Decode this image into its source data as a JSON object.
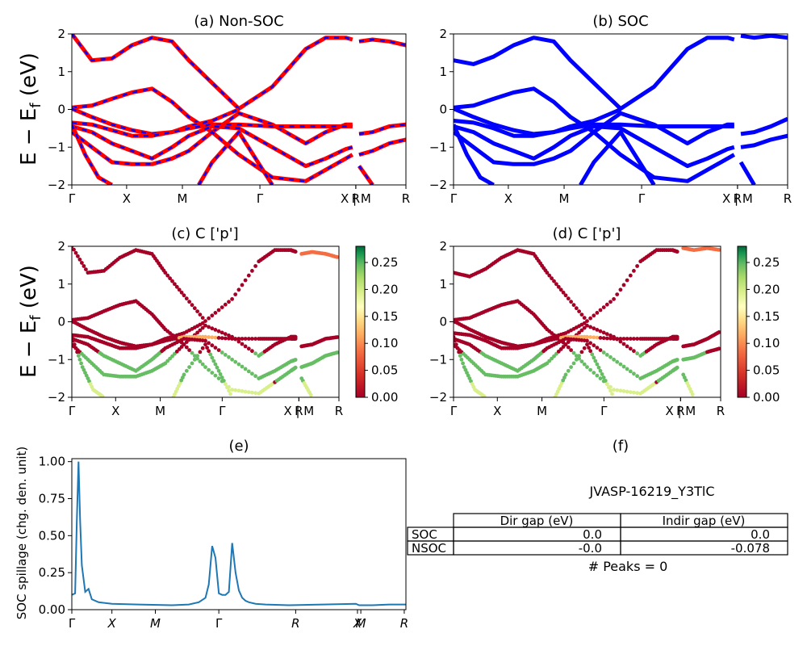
{
  "figure": {
    "ylabel_band": "E − E_f (eV)",
    "kpath_labels": [
      "Γ",
      "X",
      "M",
      "Γ",
      "R",
      "X | M",
      "R"
    ]
  },
  "chart_data": [
    {
      "type": "line",
      "panel": "a",
      "title": "(a) Non-SOC",
      "xlabel": "",
      "ylabel": "E − E_f (eV)",
      "ylim": [
        -2,
        2
      ],
      "yticks": [
        -2,
        -1,
        0,
        1,
        2
      ],
      "xticks": [
        "Γ",
        "X",
        "M",
        "Γ",
        "R",
        "X | M",
        "R"
      ],
      "colors": {
        "bands": "#ff0000",
        "dash": "#0000ff"
      },
      "note_x": "k-path position fraction 0..1",
      "series": [
        {
          "x": [
            0,
            0.06,
            0.12,
            0.18,
            0.24,
            0.3,
            0.35,
            0.42,
            0.5,
            0.6,
            0.7,
            0.76,
            0.82,
            0.84
          ],
          "y": [
            2,
            1.3,
            1.35,
            1.7,
            1.9,
            1.8,
            1.3,
            0.7,
            0.02,
            0.6,
            1.6,
            1.9,
            1.9,
            1.85
          ]
        },
        {
          "x": [
            0,
            0.06,
            0.12,
            0.18,
            0.24,
            0.3,
            0.35,
            0.42,
            0.5,
            0.6,
            0.7,
            0.76,
            0.82,
            0.84
          ],
          "y": [
            0.05,
            0.1,
            0.28,
            0.45,
            0.55,
            0.2,
            -0.2,
            -0.6,
            -0.1,
            -0.4,
            -0.9,
            -0.6,
            -0.4,
            -0.4
          ]
        },
        {
          "x": [
            0,
            0.06,
            0.12,
            0.18,
            0.24,
            0.3,
            0.35,
            0.42,
            0.5
          ],
          "y": [
            0.02,
            -0.2,
            -0.4,
            -0.55,
            -0.65,
            -0.6,
            -0.45,
            -0.3,
            0.0
          ]
        },
        {
          "x": [
            0,
            0.06,
            0.12,
            0.18,
            0.24,
            0.3,
            0.35,
            0.42,
            0.5,
            0.6,
            0.7,
            0.76,
            0.82,
            0.84
          ],
          "y": [
            -0.35,
            -0.4,
            -0.55,
            -0.7,
            -0.7,
            -0.6,
            -0.5,
            -0.4,
            -0.4,
            -0.45,
            -0.45,
            -0.45,
            -0.45,
            -0.45
          ]
        },
        {
          "x": [
            0,
            0.06,
            0.12,
            0.18,
            0.24,
            0.3,
            0.35,
            0.42,
            0.5,
            0.6,
            0.7,
            0.76,
            0.82,
            0.84
          ],
          "y": [
            -0.45,
            -0.6,
            -0.9,
            -1.1,
            -1.3,
            -1.0,
            -0.7,
            -0.45,
            -0.5,
            -1.0,
            -1.5,
            -1.3,
            -1.05,
            -1.0
          ]
        },
        {
          "x": [
            0,
            0.06,
            0.12,
            0.18,
            0.24,
            0.3,
            0.35,
            0.42,
            0.5,
            0.6,
            0.7,
            0.76,
            0.82,
            0.84
          ],
          "y": [
            -0.6,
            -1.0,
            -1.4,
            -1.45,
            -1.45,
            -1.3,
            -1.1,
            -0.6,
            -1.2,
            -1.8,
            -1.9,
            -1.6,
            -1.3,
            -1.2
          ]
        },
        {
          "x": [
            0,
            0.04,
            0.08,
            0.12
          ],
          "y": [
            -0.4,
            -1.2,
            -1.8,
            -2
          ]
        },
        {
          "x": [
            0.38,
            0.42,
            0.5,
            0.55,
            0.6
          ],
          "y": [
            -2,
            -1.4,
            -0.6,
            -1.3,
            -2
          ]
        },
        {
          "x": [
            0.86,
            0.9,
            0.95,
            1.0
          ],
          "y": [
            -0.65,
            -0.6,
            -0.45,
            -0.4
          ]
        },
        {
          "x": [
            0.86,
            0.9,
            0.95,
            1.0
          ],
          "y": [
            -1.2,
            -1.1,
            -0.9,
            -0.8
          ]
        },
        {
          "x": [
            0.86,
            0.9
          ],
          "y": [
            -1.5,
            -2
          ]
        },
        {
          "x": [
            0.86,
            0.9,
            0.95,
            1.0
          ],
          "y": [
            1.8,
            1.85,
            1.8,
            1.7
          ]
        }
      ]
    },
    {
      "type": "line",
      "panel": "b",
      "title": "(b) SOC",
      "xlabel": "",
      "ylabel": "",
      "ylim": [
        -2,
        2
      ],
      "yticks": [
        -2,
        -1,
        0,
        1,
        2
      ],
      "xticks": [
        "Γ",
        "X",
        "M",
        "Γ",
        "R",
        "X | M",
        "R"
      ],
      "colors": {
        "bands": "#0000ff"
      },
      "series": [
        {
          "x": [
            0,
            0.06,
            0.12,
            0.18,
            0.24,
            0.3,
            0.35,
            0.42,
            0.5,
            0.6,
            0.7,
            0.76,
            0.82,
            0.84
          ],
          "y": [
            1.3,
            1.2,
            1.4,
            1.7,
            1.9,
            1.8,
            1.3,
            0.7,
            0.02,
            0.6,
            1.6,
            1.9,
            1.9,
            1.85
          ]
        },
        {
          "x": [
            0,
            0.06,
            0.12,
            0.18,
            0.24,
            0.3,
            0.35,
            0.42,
            0.5,
            0.6,
            0.7,
            0.76,
            0.82,
            0.84
          ],
          "y": [
            0.05,
            0.1,
            0.28,
            0.45,
            0.55,
            0.2,
            -0.2,
            -0.6,
            -0.1,
            -0.4,
            -0.9,
            -0.6,
            -0.4,
            -0.4
          ]
        },
        {
          "x": [
            0,
            0.06,
            0.12,
            0.18,
            0.24,
            0.3,
            0.35,
            0.42,
            0.5
          ],
          "y": [
            0.02,
            -0.2,
            -0.4,
            -0.55,
            -0.65,
            -0.6,
            -0.45,
            -0.3,
            0.0
          ]
        },
        {
          "x": [
            0,
            0.06,
            0.12,
            0.18,
            0.24,
            0.3,
            0.35,
            0.42,
            0.5,
            0.6,
            0.7,
            0.76,
            0.82,
            0.84
          ],
          "y": [
            -0.3,
            -0.35,
            -0.5,
            -0.7,
            -0.7,
            -0.6,
            -0.5,
            -0.4,
            -0.4,
            -0.45,
            -0.45,
            -0.45,
            -0.45,
            -0.45
          ]
        },
        {
          "x": [
            0,
            0.06,
            0.12,
            0.18,
            0.24,
            0.3,
            0.35,
            0.42,
            0.5,
            0.6,
            0.7,
            0.76,
            0.82,
            0.84
          ],
          "y": [
            -0.45,
            -0.6,
            -0.9,
            -1.1,
            -1.3,
            -1.0,
            -0.7,
            -0.45,
            -0.5,
            -1.0,
            -1.5,
            -1.3,
            -1.05,
            -1.0
          ]
        },
        {
          "x": [
            0,
            0.06,
            0.12,
            0.18,
            0.24,
            0.3,
            0.35,
            0.42,
            0.5,
            0.6,
            0.7,
            0.76,
            0.82,
            0.84
          ],
          "y": [
            -0.6,
            -1.0,
            -1.4,
            -1.45,
            -1.45,
            -1.3,
            -1.1,
            -0.6,
            -1.2,
            -1.8,
            -1.9,
            -1.6,
            -1.3,
            -1.2
          ]
        },
        {
          "x": [
            0,
            0.04,
            0.08,
            0.12
          ],
          "y": [
            -0.4,
            -1.2,
            -1.8,
            -2
          ]
        },
        {
          "x": [
            0.38,
            0.42,
            0.5,
            0.55,
            0.6
          ],
          "y": [
            -2,
            -1.4,
            -0.6,
            -1.3,
            -2
          ]
        },
        {
          "x": [
            0.86,
            0.9,
            0.95,
            1.0
          ],
          "y": [
            -0.65,
            -0.6,
            -0.45,
            -0.25
          ]
        },
        {
          "x": [
            0.86,
            0.9,
            0.95,
            1.0
          ],
          "y": [
            -1.0,
            -0.95,
            -0.8,
            -0.7
          ]
        },
        {
          "x": [
            0.86,
            0.9
          ],
          "y": [
            -1.4,
            -2
          ]
        },
        {
          "x": [
            0.86,
            0.9,
            0.95,
            1.0
          ],
          "y": [
            1.95,
            1.9,
            1.95,
            1.9
          ]
        }
      ]
    },
    {
      "type": "scatter",
      "panel": "c",
      "title": "(c)  C ['p']",
      "ylabel": "E − E_f (eV)",
      "ylim": [
        -2,
        2
      ],
      "yticks": [
        -2,
        -1,
        0,
        1,
        2
      ],
      "xticks": [
        "Γ",
        "X",
        "M",
        "Γ",
        "R",
        "X | M",
        "R"
      ],
      "colorbar": {
        "range": [
          0.0,
          0.28
        ],
        "ticks": [
          "0.00",
          "0.05",
          "0.10",
          "0.15",
          "0.20",
          "0.25"
        ],
        "cmap": "RdYlGn"
      }
    },
    {
      "type": "scatter",
      "panel": "d",
      "title": "(d) C ['p']",
      "ylim": [
        -2,
        2
      ],
      "yticks": [
        -2,
        -1,
        0,
        1,
        2
      ],
      "xticks": [
        "Γ",
        "X",
        "M",
        "Γ",
        "R",
        "X | M",
        "R"
      ],
      "colorbar": {
        "range": [
          0.0,
          0.28
        ],
        "ticks": [
          "0.00",
          "0.05",
          "0.10",
          "0.15",
          "0.20",
          "0.25"
        ],
        "cmap": "RdYlGn"
      }
    },
    {
      "type": "line",
      "panel": "e",
      "title": "(e)",
      "xlabel": "",
      "ylabel": "SOC spillage (chg. den. unit)",
      "ylim": [
        0,
        1.02
      ],
      "yticks": [
        "0.00",
        "0.25",
        "0.50",
        "0.75",
        "1.00"
      ],
      "xticks": [
        "Γ",
        "X",
        "M",
        "Γ",
        "R",
        "X",
        "M",
        "R"
      ],
      "colors": {
        "line": "#1f77b4"
      },
      "series": [
        {
          "x": [
            0,
            0.01,
            0.015,
            0.02,
            0.025,
            0.03,
            0.04,
            0.05,
            0.06,
            0.08,
            0.12,
            0.2,
            0.3,
            0.35,
            0.38,
            0.4,
            0.41,
            0.42,
            0.43,
            0.44,
            0.45,
            0.46,
            0.47,
            0.48,
            0.49,
            0.5,
            0.51,
            0.52,
            0.53,
            0.55,
            0.58,
            0.65,
            0.75,
            0.85,
            0.86,
            0.9,
            0.95,
            1.0
          ],
          "y": [
            0.1,
            0.11,
            0.6,
            1.0,
            0.6,
            0.3,
            0.12,
            0.14,
            0.07,
            0.05,
            0.04,
            0.035,
            0.03,
            0.035,
            0.05,
            0.08,
            0.17,
            0.43,
            0.35,
            0.11,
            0.1,
            0.1,
            0.12,
            0.45,
            0.25,
            0.13,
            0.08,
            0.06,
            0.05,
            0.04,
            0.035,
            0.03,
            0.035,
            0.04,
            0.03,
            0.03,
            0.035,
            0.035
          ]
        }
      ]
    }
  ],
  "info": {
    "title": "(f)",
    "material": "JVASP-16219_Y3TlC",
    "table": {
      "headers": [
        "",
        "Dir gap (eV)",
        "Indir gap (eV)"
      ],
      "rows": [
        {
          "label": "SOC",
          "dir": "0.0",
          "indir": "0.0"
        },
        {
          "label": "NSOC",
          "dir": "-0.0",
          "indir": "-0.078"
        }
      ]
    },
    "peaks": "# Peaks = 0"
  }
}
